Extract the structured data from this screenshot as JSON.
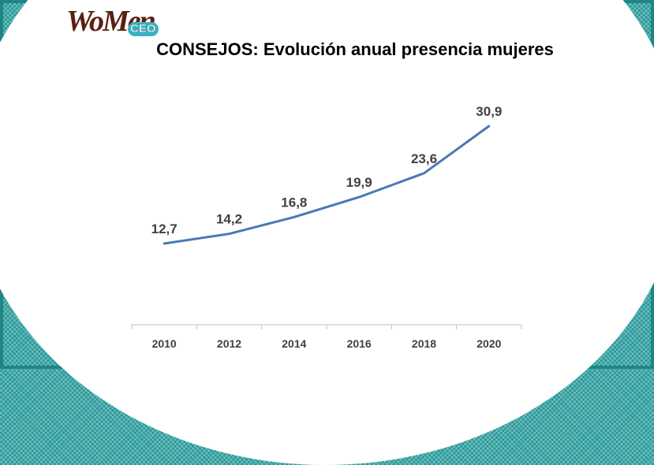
{
  "logo": {
    "text_main": "WoMen",
    "text_sup": "en",
    "text_badge": "CEO"
  },
  "colors": {
    "line": "#4a78b5",
    "axis": "#bfbfbf",
    "label": "#404040",
    "frame": "#2a9a9a"
  },
  "chart_data": {
    "type": "line",
    "title": "CONSEJOS: Evolución anual presencia mujeres",
    "categories": [
      "2010",
      "2012",
      "2014",
      "2016",
      "2018",
      "2020"
    ],
    "values": [
      12.7,
      14.2,
      16.8,
      19.9,
      23.6,
      30.9
    ],
    "data_labels": [
      "12,7",
      "14,2",
      "16,8",
      "19,9",
      "23,6",
      "30,9"
    ],
    "xlabel": "",
    "ylabel": "",
    "grid": false,
    "legend": "none"
  }
}
